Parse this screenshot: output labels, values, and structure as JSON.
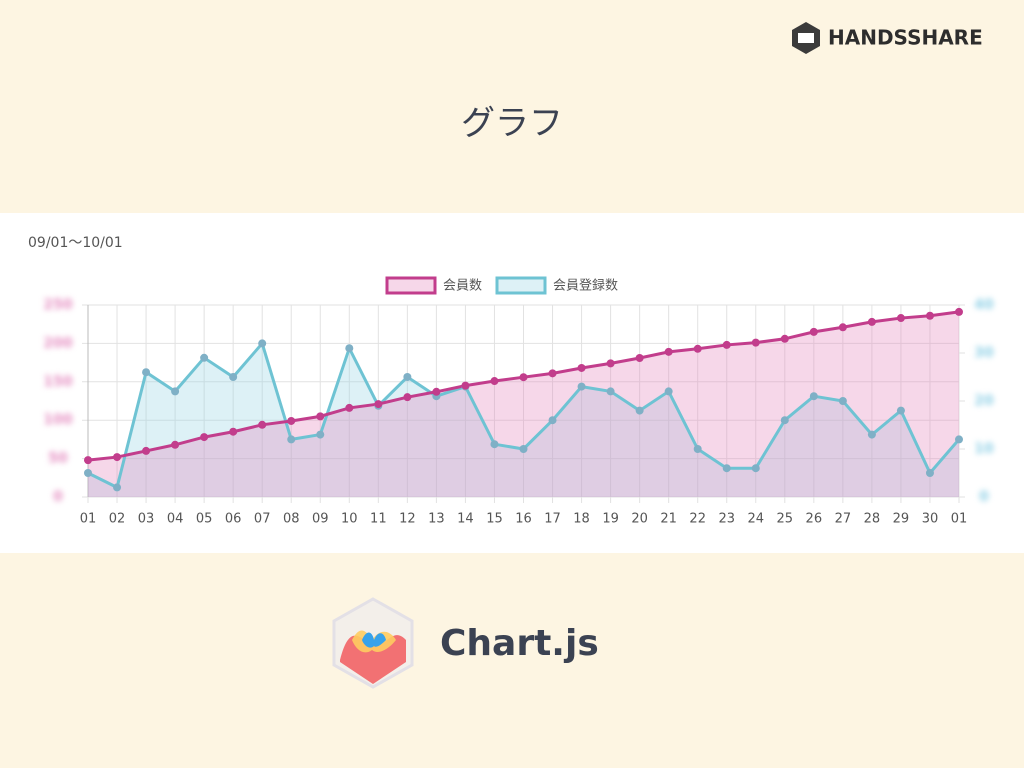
{
  "slide": {
    "title": "グラフ",
    "brand": "HANDSSHARE",
    "footer": "Chart.js"
  },
  "chart_data": {
    "type": "line",
    "title": "09/01〜10/01",
    "categories": [
      "01",
      "02",
      "03",
      "04",
      "05",
      "06",
      "07",
      "08",
      "09",
      "10",
      "11",
      "12",
      "13",
      "14",
      "15",
      "16",
      "17",
      "18",
      "19",
      "20",
      "21",
      "22",
      "23",
      "24",
      "25",
      "26",
      "27",
      "28",
      "29",
      "30",
      "01"
    ],
    "series": [
      {
        "name": "会員数",
        "color": "#c23d8c",
        "fill": "rgba(226,130,186,0.32)",
        "values": [
          48,
          52,
          60,
          68,
          78,
          85,
          94,
          99,
          105,
          116,
          121,
          130,
          137,
          145,
          151,
          156,
          161,
          168,
          174,
          181,
          189,
          193,
          198,
          201,
          206,
          215,
          221,
          228,
          233,
          236,
          241
        ]
      },
      {
        "name": "会員登録数",
        "color": "#6ec3d3",
        "fill": "rgba(150,210,228,0.32)",
        "axis": "y2",
        "values": [
          5,
          2,
          26,
          22,
          29,
          25,
          32,
          12,
          13,
          31,
          19,
          25,
          21,
          23,
          11,
          10,
          16,
          23,
          22,
          18,
          22,
          10,
          6,
          6,
          16,
          21,
          20,
          13,
          18,
          5,
          12
        ]
      }
    ],
    "ylim": [
      0,
      250
    ],
    "yticks": [
      0,
      50,
      100,
      150,
      200,
      250
    ],
    "y2lim": [
      0,
      40
    ],
    "y2ticks": [
      0,
      10,
      20,
      30,
      40
    ],
    "grid": true,
    "legend": "top"
  }
}
